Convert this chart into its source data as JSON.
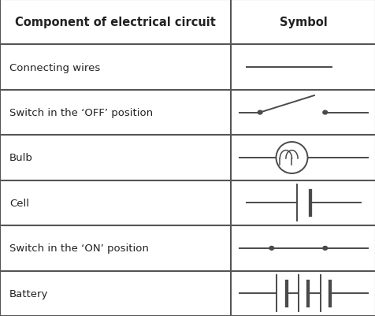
{
  "headers": [
    "Component of electrical circuit",
    "Symbol"
  ],
  "rows": [
    "Connecting wires",
    "Switch in the ‘OFF’ position",
    "Bulb",
    "Cell",
    "Switch in the ‘ON’ position",
    "Battery"
  ],
  "col_split": 0.615,
  "fig_width": 4.77,
  "fig_height": 4.02,
  "bg_color": "#ffffff",
  "line_color": "#4a4a4a",
  "text_color": "#222222",
  "border_color": "#555555",
  "font_size": 9.5,
  "header_font_size": 10.5
}
